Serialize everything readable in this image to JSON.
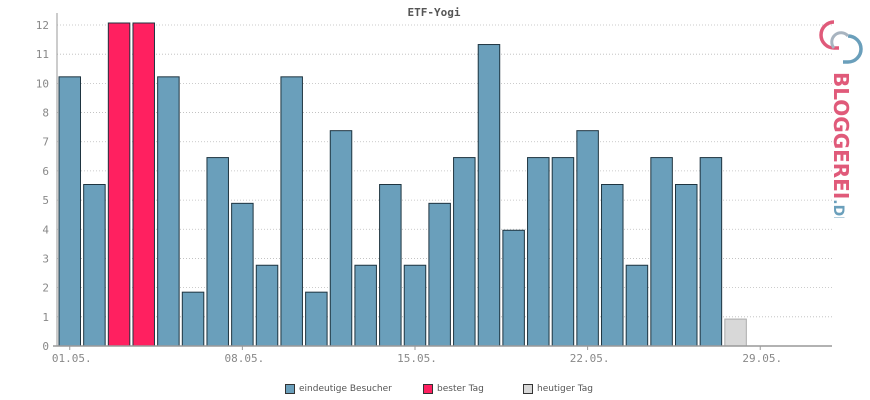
{
  "chart_data": {
    "type": "bar",
    "title": "ETF-Yogi",
    "y_ticks": [
      "0",
      "1",
      "2",
      "3",
      "4",
      "5",
      "6",
      "7",
      "8",
      "10",
      "11",
      "12"
    ],
    "x_tick_labels": [
      "01.05.",
      "08.05.",
      "15.05.",
      "22.05.",
      "29.05."
    ],
    "x_tick_days": [
      1,
      8,
      15,
      22,
      29
    ],
    "days": [
      1,
      2,
      3,
      4,
      5,
      6,
      7,
      8,
      9,
      10,
      11,
      12,
      13,
      14,
      15,
      16,
      17,
      18,
      19,
      20,
      21,
      22,
      23,
      24,
      25,
      26,
      27,
      28,
      29,
      30,
      31
    ],
    "values": [
      10,
      6,
      12,
      12,
      10,
      2,
      7,
      5.3,
      3,
      10,
      2,
      8,
      3,
      6,
      3,
      5.3,
      7,
      11.2,
      4.3,
      7,
      7,
      8,
      6,
      3,
      7,
      6,
      7,
      1,
      0,
      0,
      0
    ],
    "bar_kinds": [
      "visitor",
      "visitor",
      "best",
      "best",
      "visitor",
      "visitor",
      "visitor",
      "visitor",
      "visitor",
      "visitor",
      "visitor",
      "visitor",
      "visitor",
      "visitor",
      "visitor",
      "visitor",
      "visitor",
      "visitor",
      "visitor",
      "visitor",
      "visitor",
      "visitor",
      "visitor",
      "visitor",
      "visitor",
      "visitor",
      "visitor",
      "today",
      "none",
      "none",
      "none"
    ],
    "colors": {
      "visitor": "#6a9fbb",
      "best": "#ff2060",
      "today": "#d8d8d8",
      "none": "#ffffff"
    },
    "grid": true
  },
  "legend": {
    "visitor_label": "eindeutige Besucher",
    "best_label": "bester Tag",
    "today_label": "heutiger Tag"
  },
  "logo": {
    "text_main": "BLOGGEREI",
    "text_suffix": ".DE"
  }
}
